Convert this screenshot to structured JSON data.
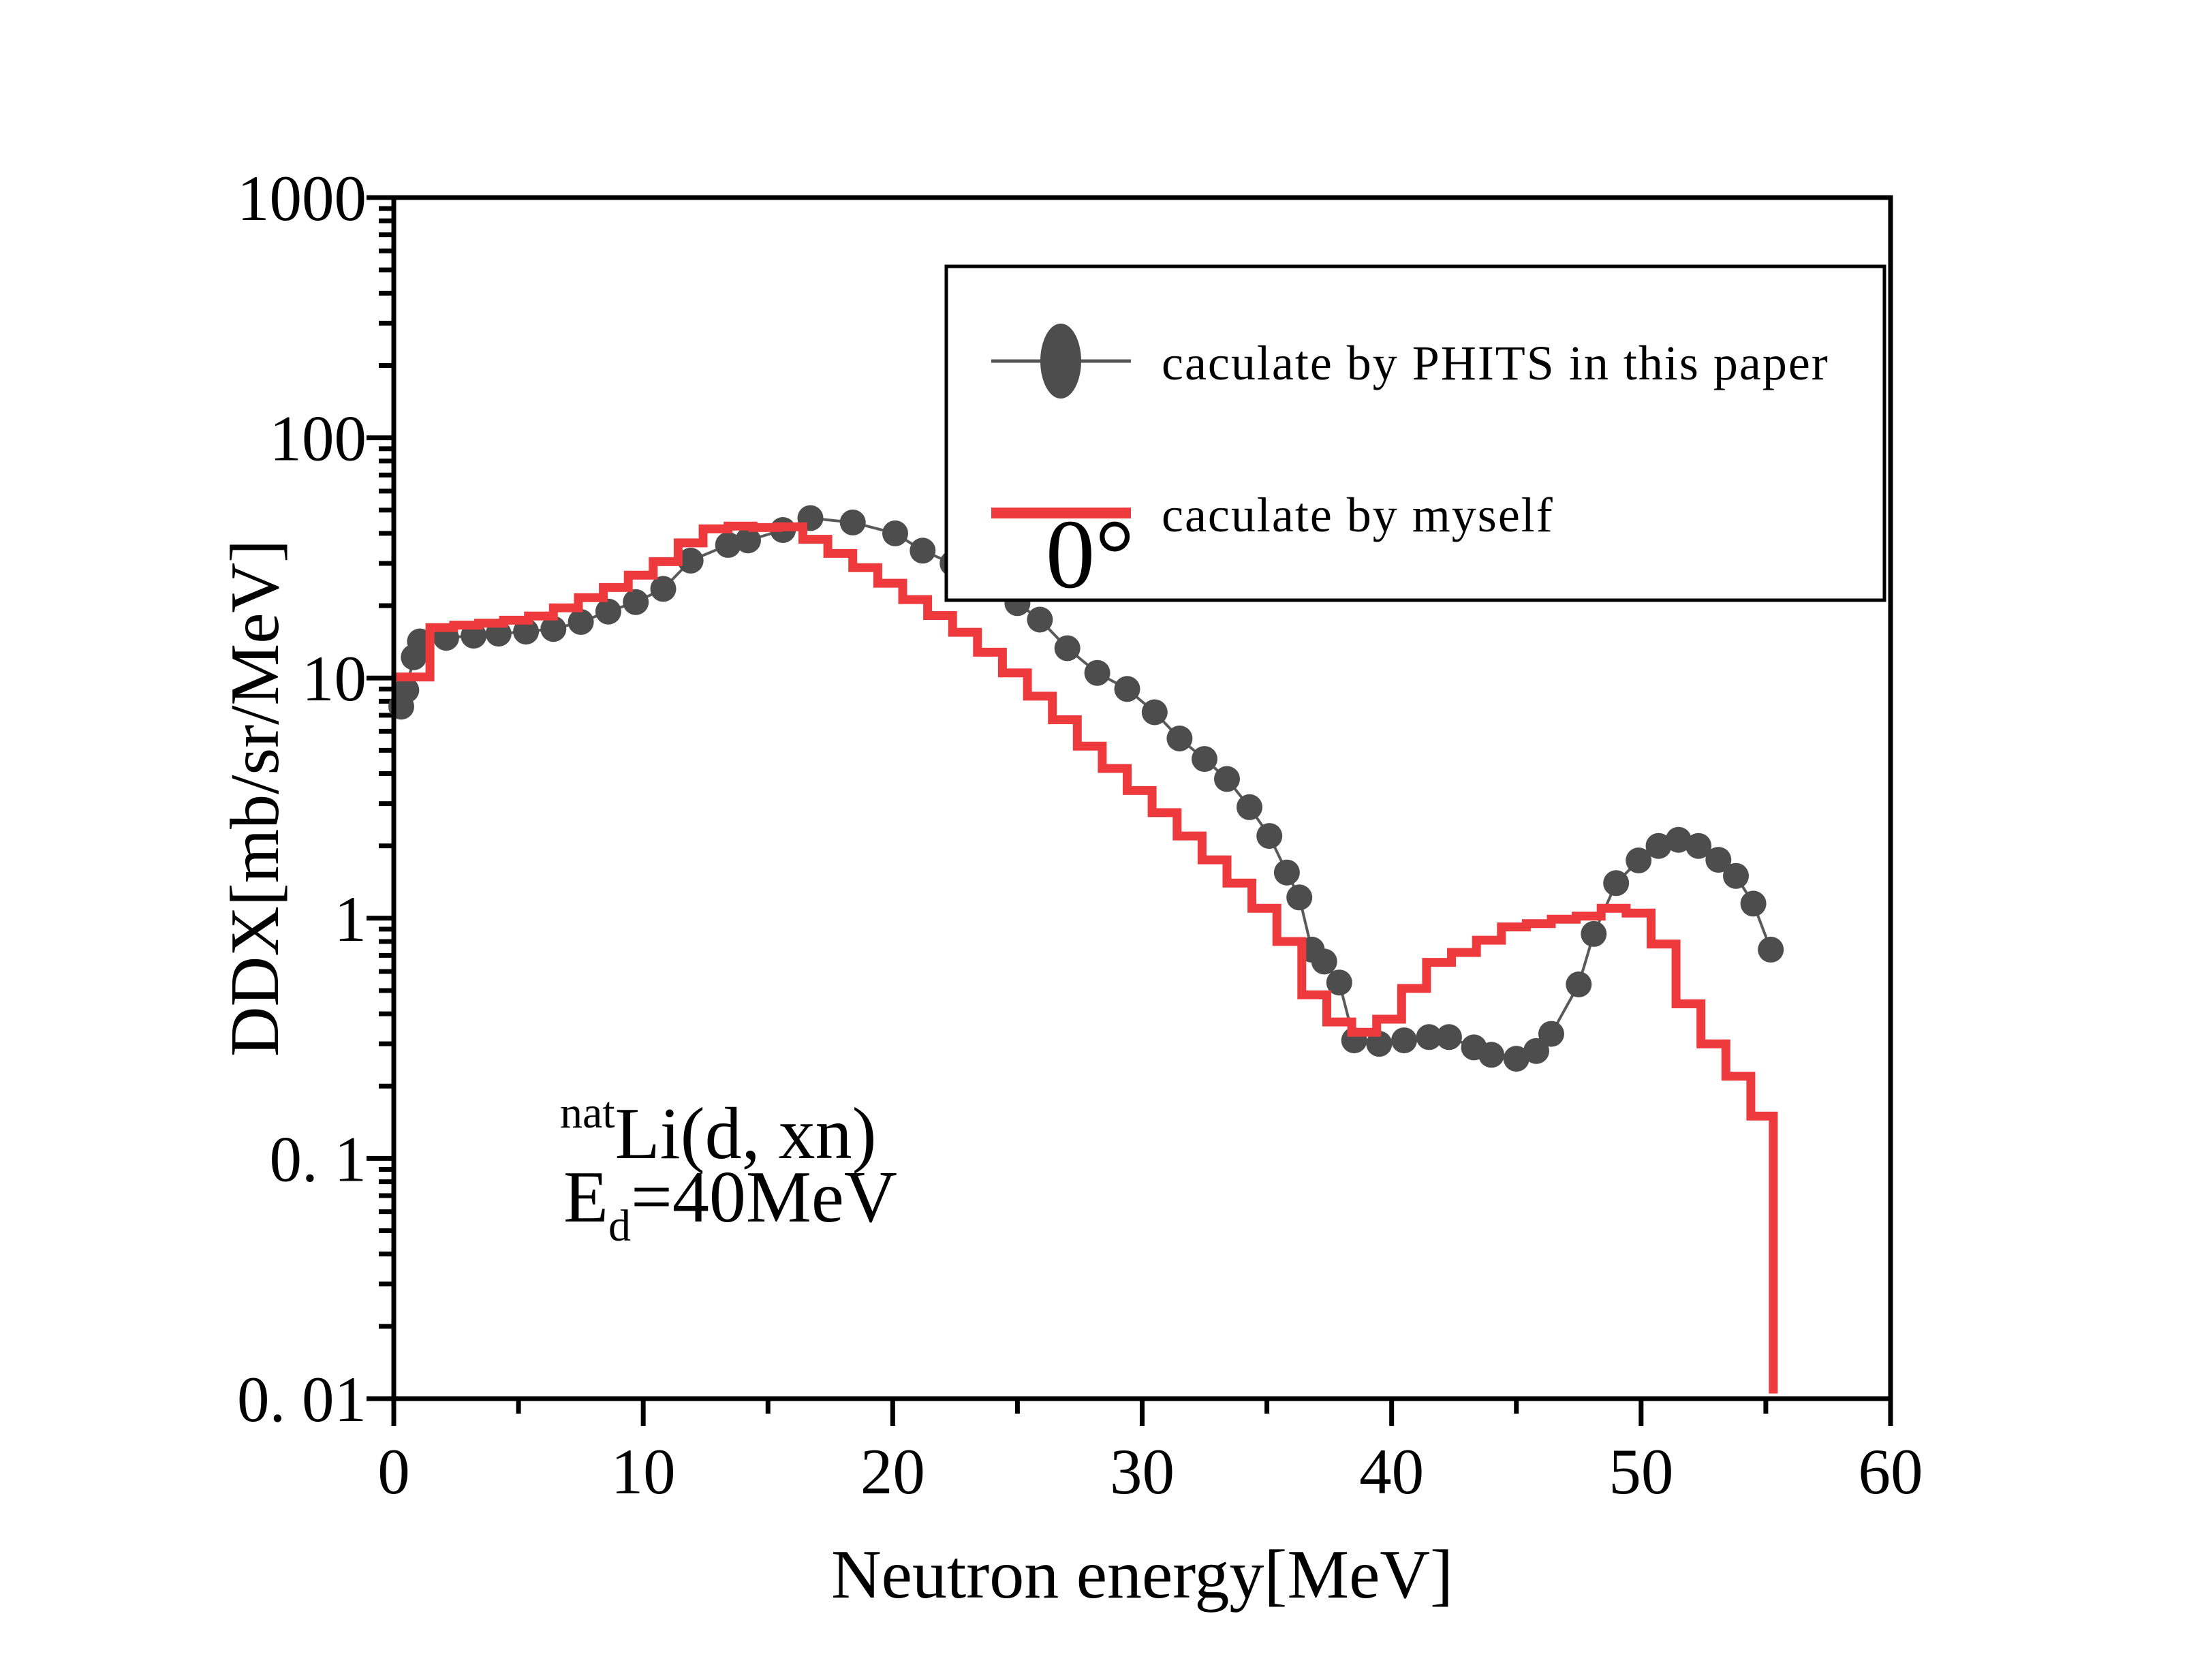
{
  "figure": {
    "background": "#ffffff",
    "frame_color": "#000000",
    "annotations": {
      "angle": "0°",
      "reaction_sup": "nat",
      "reaction_main": "Li(d, xn)",
      "energy_main": "E",
      "energy_sub": "d",
      "energy_rest": "=40MeV"
    }
  },
  "chart_data": {
    "type": "line",
    "title": "",
    "xlabel": "Neutron energy[MeV]",
    "ylabel": "DDX[mb/sr/MeV]",
    "grid": false,
    "legend_position": "top-right",
    "x_axis": {
      "min": 0,
      "max": 60,
      "major_ticks": [
        0,
        10,
        20,
        30,
        40,
        50,
        60
      ],
      "tick_labels": [
        "0",
        "10",
        "20",
        "30",
        "40",
        "50",
        "60"
      ],
      "minor_tick_step": 5
    },
    "y_axis": {
      "scale": "log",
      "min": 0.01,
      "max": 1000,
      "tick_values": [
        1000,
        100,
        10,
        1,
        0.1,
        0.01
      ],
      "tick_labels": [
        "1000",
        "100",
        "10",
        "1",
        "0. 1",
        "0. 01"
      ]
    },
    "series": [
      {
        "name": "caculate by PHITS in this paper",
        "type": "scatter-line",
        "marker": "circle",
        "color": "#4d4d4d",
        "line_color": "#5a5a5a",
        "points": [
          [
            0.3,
            7.6
          ],
          [
            0.5,
            8.9
          ],
          [
            0.8,
            12.2
          ],
          [
            1.05,
            14.2
          ],
          [
            2.1,
            14.7
          ],
          [
            3.2,
            15.0
          ],
          [
            4.2,
            15.3
          ],
          [
            5.3,
            15.6
          ],
          [
            6.4,
            16.0
          ],
          [
            7.5,
            17.1
          ],
          [
            8.6,
            18.9
          ],
          [
            9.7,
            20.7
          ],
          [
            10.8,
            23.5
          ],
          [
            11.9,
            30.8
          ],
          [
            13.4,
            35.8
          ],
          [
            14.2,
            37.4
          ],
          [
            15.6,
            41.3
          ],
          [
            16.7,
            46.3
          ],
          [
            18.4,
            44.4
          ],
          [
            20.1,
            40.0
          ],
          [
            21.2,
            33.9
          ],
          [
            22.4,
            30.0
          ],
          [
            23.6,
            25.3
          ],
          [
            25.0,
            20.5
          ],
          [
            25.9,
            17.5
          ],
          [
            27.0,
            13.3
          ],
          [
            28.2,
            10.5
          ],
          [
            29.4,
            9.0
          ],
          [
            30.5,
            7.2
          ],
          [
            31.5,
            5.6
          ],
          [
            32.5,
            4.6
          ],
          [
            33.4,
            3.8
          ],
          [
            34.3,
            2.9
          ],
          [
            35.1,
            2.2
          ],
          [
            35.8,
            1.55
          ],
          [
            36.3,
            1.22
          ],
          [
            36.8,
            0.74
          ],
          [
            37.3,
            0.66
          ],
          [
            37.9,
            0.54
          ],
          [
            38.5,
            0.31
          ],
          [
            39.5,
            0.3
          ],
          [
            40.5,
            0.31
          ],
          [
            41.5,
            0.32
          ],
          [
            42.3,
            0.32
          ],
          [
            43.3,
            0.29
          ],
          [
            44.0,
            0.27
          ],
          [
            45.0,
            0.26
          ],
          [
            45.8,
            0.28
          ],
          [
            46.4,
            0.33
          ],
          [
            47.5,
            0.53
          ],
          [
            48.1,
            0.86
          ],
          [
            49.0,
            1.4
          ],
          [
            49.9,
            1.74
          ],
          [
            50.7,
            2.0
          ],
          [
            51.5,
            2.12
          ],
          [
            52.3,
            2.0
          ],
          [
            53.1,
            1.75
          ],
          [
            53.8,
            1.5
          ],
          [
            54.5,
            1.15
          ],
          [
            55.2,
            0.74
          ]
        ]
      },
      {
        "name": "caculate by myself",
        "type": "step-post",
        "color": "#ee3a3c",
        "steps": [
          [
            0,
            10.1
          ],
          [
            1.45,
            16.2
          ],
          [
            2.4,
            16.6
          ],
          [
            3.4,
            16.9
          ],
          [
            4.4,
            17.4
          ],
          [
            5.4,
            18.1
          ],
          [
            6.4,
            19.6
          ],
          [
            7.4,
            21.6
          ],
          [
            8.4,
            23.8
          ],
          [
            9.4,
            26.8
          ],
          [
            10.4,
            30.5
          ],
          [
            11.4,
            36.5
          ],
          [
            12.4,
            41.8
          ],
          [
            13.4,
            42.9
          ],
          [
            14.4,
            42.3
          ],
          [
            15.4,
            42.6
          ],
          [
            16.4,
            37.8
          ],
          [
            17.4,
            33.0
          ],
          [
            18.4,
            28.8
          ],
          [
            19.4,
            24.8
          ],
          [
            20.4,
            21.2
          ],
          [
            21.4,
            18.2
          ],
          [
            22.4,
            15.5
          ],
          [
            23.4,
            12.8
          ],
          [
            24.4,
            10.5
          ],
          [
            25.4,
            8.4
          ],
          [
            26.4,
            6.7
          ],
          [
            27.4,
            5.2
          ],
          [
            28.4,
            4.2
          ],
          [
            29.4,
            3.4
          ],
          [
            30.4,
            2.75
          ],
          [
            31.4,
            2.2
          ],
          [
            32.4,
            1.75
          ],
          [
            33.4,
            1.4
          ],
          [
            34.4,
            1.1
          ],
          [
            35.4,
            0.8
          ],
          [
            36.4,
            0.48
          ],
          [
            37.4,
            0.37
          ],
          [
            38.4,
            0.335
          ],
          [
            39.4,
            0.38
          ],
          [
            40.4,
            0.51
          ],
          [
            41.4,
            0.655
          ],
          [
            42.4,
            0.72
          ],
          [
            43.4,
            0.81
          ],
          [
            44.4,
            0.92
          ],
          [
            45.4,
            0.95
          ],
          [
            46.4,
            0.99
          ],
          [
            47.4,
            1.02
          ],
          [
            48.4,
            1.1
          ],
          [
            49.4,
            1.05
          ],
          [
            50.4,
            0.78
          ],
          [
            51.4,
            0.44
          ],
          [
            52.4,
            0.3
          ],
          [
            53.4,
            0.22
          ],
          [
            54.4,
            0.15
          ],
          [
            55.3,
            0.0105
          ]
        ]
      }
    ],
    "legend_entries": [
      {
        "label": "caculate by PHITS in this paper",
        "marker": "circle-line",
        "marker_color": "#4d4d4d",
        "line_color": "#555555"
      },
      {
        "label": "caculate by myself",
        "marker": "line",
        "marker_color": "#ee3a3c"
      }
    ]
  }
}
